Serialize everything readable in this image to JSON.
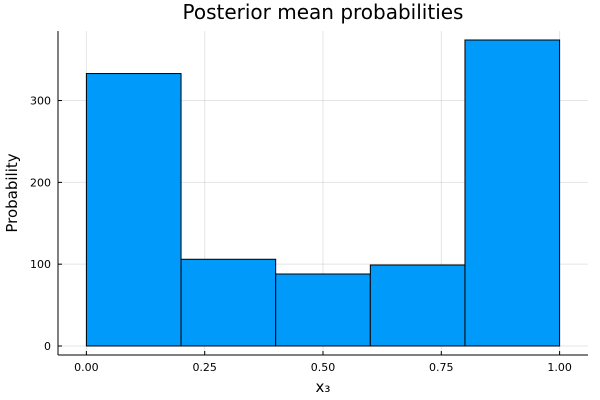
{
  "chart_data": {
    "type": "bar",
    "title": "Posterior mean probabilities",
    "xlabel": "x₃",
    "ylabel": "Probability",
    "bins": [
      {
        "x0": 0.0,
        "x1": 0.2,
        "value": 333
      },
      {
        "x0": 0.2,
        "x1": 0.4,
        "value": 106
      },
      {
        "x0": 0.4,
        "x1": 0.6,
        "value": 88
      },
      {
        "x0": 0.6,
        "x1": 0.8,
        "value": 99
      },
      {
        "x0": 0.8,
        "x1": 1.0,
        "value": 374
      }
    ],
    "xlim": [
      -0.06,
      1.06
    ],
    "ylim": [
      -11,
      385
    ],
    "xticks": [
      {
        "value": 0.0,
        "label": "0.00"
      },
      {
        "value": 0.25,
        "label": "0.25"
      },
      {
        "value": 0.5,
        "label": "0.50"
      },
      {
        "value": 0.75,
        "label": "0.75"
      },
      {
        "value": 1.0,
        "label": "1.00"
      }
    ],
    "yticks": [
      {
        "value": 0,
        "label": "0"
      },
      {
        "value": 100,
        "label": "100"
      },
      {
        "value": 200,
        "label": "200"
      },
      {
        "value": 300,
        "label": "300"
      }
    ],
    "grid": true,
    "legend": "none",
    "bar_color": "#009AFA",
    "bar_edge_color": "#000000"
  }
}
